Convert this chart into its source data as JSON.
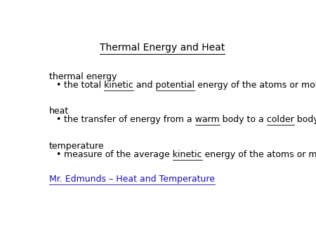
{
  "title": "Thermal Energy and Heat",
  "bg_color": "#ffffff",
  "title_color": "#000000",
  "title_fontsize": 10,
  "body_fontsize": 9,
  "link_color": "#1a0dab",
  "text_color": "#000000",
  "sections": [
    {
      "heading": "thermal energy",
      "bullet": "the total kinetic and potential energy of the atoms or molecules of a substance",
      "underline_words": [
        "kinetic",
        "potential"
      ]
    },
    {
      "heading": "heat",
      "bullet": "the transfer of energy from a warm body to a colder body",
      "underline_words": [
        "warm",
        "colder"
      ]
    },
    {
      "heading": "temperature",
      "bullet": "measure of the average kinetic energy of the atoms or molecules of a substance",
      "underline_words": [
        "kinetic"
      ]
    }
  ],
  "link_text": "Mr. Edmunds – Heat and Temperature"
}
